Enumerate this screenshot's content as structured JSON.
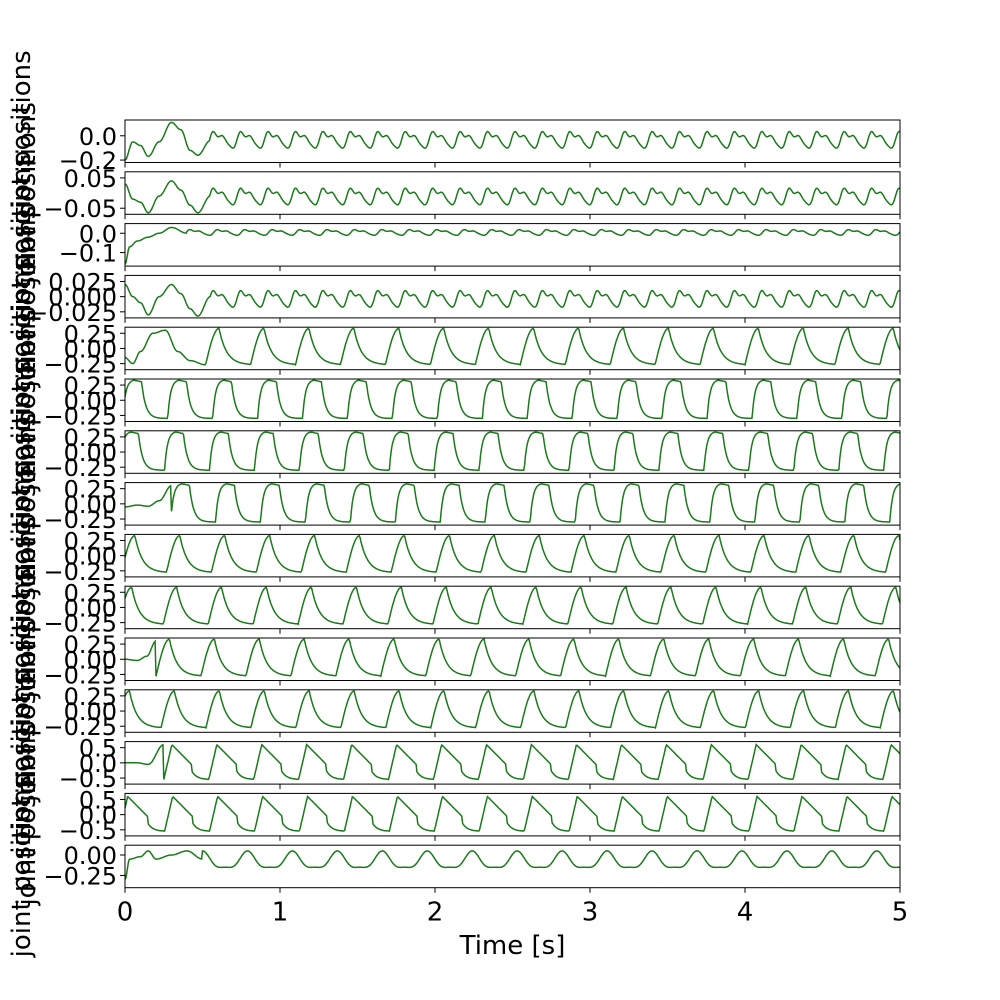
{
  "chart_data": {
    "type": "line",
    "layout": "15 stacked subplots sharing the x axis",
    "line_color": "#1a7a1a",
    "xlabel": "Time [s]",
    "xlim": [
      0,
      5
    ],
    "x_ticks": [
      0,
      1,
      2,
      3,
      4,
      5
    ],
    "x_tick_labels": [
      "0",
      "1",
      "2",
      "3",
      "4",
      "5"
    ],
    "ylabel": "joint positions",
    "legend": "none",
    "grid": false,
    "subplots": [
      {
        "ylim": [
          -0.22,
          0.13
        ],
        "y_ticks": [
          0.0,
          -0.2
        ],
        "y_tick_labels": [
          "0.0",
          "−0.2"
        ],
        "series": {
          "period": 0.177,
          "start": 0.55,
          "mean": -0.03,
          "amp": 0.055,
          "shape": "wiggle",
          "transient": [
            [
              0,
              -0.2
            ],
            [
              0.05,
              -0.05
            ],
            [
              0.1,
              -0.08
            ],
            [
              0.15,
              -0.17
            ],
            [
              0.22,
              -0.05
            ],
            [
              0.3,
              0.11
            ],
            [
              0.36,
              0.05
            ],
            [
              0.42,
              -0.12
            ],
            [
              0.47,
              -0.16
            ],
            [
              0.55,
              -0.04
            ]
          ]
        }
      },
      {
        "ylim": [
          -0.07,
          0.07
        ],
        "y_ticks": [
          0.05,
          -0.05
        ],
        "y_tick_labels": [
          "0.05",
          "−0.05"
        ],
        "series": {
          "period": 0.177,
          "start": 0.55,
          "mean": -0.01,
          "amp": 0.022,
          "shape": "wiggle",
          "transient": [
            [
              0,
              0.03
            ],
            [
              0.05,
              -0.02
            ],
            [
              0.1,
              -0.03
            ],
            [
              0.15,
              -0.065
            ],
            [
              0.22,
              -0.01
            ],
            [
              0.3,
              0.04
            ],
            [
              0.36,
              0.01
            ],
            [
              0.42,
              -0.04
            ],
            [
              0.47,
              -0.065
            ],
            [
              0.55,
              -0.01
            ]
          ]
        }
      },
      {
        "ylim": [
          -0.17,
          0.05
        ],
        "y_ticks": [
          0.0,
          -0.1
        ],
        "y_tick_labels": [
          "0.0",
          "−0.1"
        ],
        "series": {
          "period": 0.177,
          "start": 0.4,
          "mean": 0.005,
          "amp": 0.012,
          "shape": "wiggle",
          "transient": [
            [
              0,
              -0.16
            ],
            [
              0.03,
              -0.07
            ],
            [
              0.08,
              -0.04
            ],
            [
              0.15,
              -0.02
            ],
            [
              0.22,
              0.0
            ],
            [
              0.3,
              0.03
            ],
            [
              0.4,
              0.0
            ]
          ]
        }
      },
      {
        "ylim": [
          -0.035,
          0.035
        ],
        "y_ticks": [
          0.025,
          0.0,
          -0.025
        ],
        "y_tick_labels": [
          "0.025",
          "0.000",
          "−0.025"
        ],
        "series": {
          "period": 0.177,
          "start": 0.55,
          "mean": -0.003,
          "amp": 0.011,
          "shape": "wiggle",
          "transient": [
            [
              0,
              0.02
            ],
            [
              0.05,
              0.0
            ],
            [
              0.1,
              -0.01
            ],
            [
              0.15,
              -0.03
            ],
            [
              0.22,
              0.0
            ],
            [
              0.3,
              0.02
            ],
            [
              0.36,
              0.005
            ],
            [
              0.42,
              -0.02
            ],
            [
              0.47,
              -0.032
            ],
            [
              0.55,
              0.0
            ]
          ]
        }
      },
      {
        "ylim": [
          -0.35,
          0.35
        ],
        "y_ticks": [
          0.25,
          0.0,
          -0.25
        ],
        "y_tick_labels": [
          "0.25",
          "0.00",
          "−0.25"
        ],
        "series": {
          "period": 0.29,
          "start": 0.52,
          "phase": 0.0,
          "low": -0.27,
          "high": 0.33,
          "shape": "sawtooth",
          "transient": [
            [
              0,
              -0.15
            ],
            [
              0.05,
              -0.25
            ],
            [
              0.1,
              -0.05
            ],
            [
              0.18,
              0.25
            ],
            [
              0.26,
              0.3
            ],
            [
              0.34,
              -0.05
            ],
            [
              0.42,
              -0.2
            ],
            [
              0.52,
              -0.27
            ]
          ]
        }
      },
      {
        "ylim": [
          -0.35,
          0.35
        ],
        "y_ticks": [
          0.25,
          0.0,
          -0.25
        ],
        "y_tick_labels": [
          "0.25",
          "0.00",
          "−0.25"
        ],
        "series": {
          "period": 0.29,
          "start": 0.0,
          "phase": 0.05,
          "low": -0.3,
          "high": 0.33,
          "shape": "pulse",
          "transient": []
        }
      },
      {
        "ylim": [
          -0.35,
          0.35
        ],
        "y_ticks": [
          0.25,
          0.0,
          -0.25
        ],
        "y_tick_labels": [
          "0.25",
          "0.00",
          "−0.25"
        ],
        "series": {
          "period": 0.29,
          "start": 0.0,
          "phase": 0.12,
          "low": -0.3,
          "high": 0.33,
          "shape": "pulse",
          "transient": []
        }
      },
      {
        "ylim": [
          -0.35,
          0.35
        ],
        "y_ticks": [
          0.25,
          0.0,
          -0.25
        ],
        "y_tick_labels": [
          "0.25",
          "0.00",
          "−0.25"
        ],
        "series": {
          "period": 0.29,
          "start": 0.3,
          "phase": 0.02,
          "low": -0.3,
          "high": 0.33,
          "shape": "pulse",
          "transient": [
            [
              0,
              -0.05
            ],
            [
              0.08,
              -0.02
            ],
            [
              0.15,
              -0.04
            ],
            [
              0.22,
              0.05
            ],
            [
              0.3,
              0.3
            ]
          ]
        }
      },
      {
        "ylim": [
          -0.35,
          0.35
        ],
        "y_ticks": [
          0.25,
          0.0,
          -0.25
        ],
        "y_tick_labels": [
          "0.25",
          "0.00",
          "−0.25"
        ],
        "series": {
          "period": 0.29,
          "start": 0.0,
          "phase": 0.08,
          "low": -0.28,
          "high": 0.33,
          "shape": "sawtooth",
          "transient": []
        }
      },
      {
        "ylim": [
          -0.35,
          0.35
        ],
        "y_ticks": [
          0.25,
          0.0,
          -0.25
        ],
        "y_tick_labels": [
          "0.25",
          "0.00",
          "−0.25"
        ],
        "series": {
          "period": 0.29,
          "start": 0.0,
          "phase": 0.15,
          "low": -0.28,
          "high": 0.33,
          "shape": "sawtooth",
          "transient": []
        }
      },
      {
        "ylim": [
          -0.35,
          0.35
        ],
        "y_ticks": [
          0.25,
          0.0,
          -0.25
        ],
        "y_tick_labels": [
          "0.25",
          "0.00",
          "−0.25"
        ],
        "series": {
          "period": 0.29,
          "start": 0.2,
          "phase": 0.0,
          "low": -0.28,
          "high": 0.33,
          "shape": "sawtooth",
          "transient": [
            [
              0,
              0.0
            ],
            [
              0.08,
              -0.02
            ],
            [
              0.14,
              0.05
            ],
            [
              0.2,
              0.3
            ]
          ]
        }
      },
      {
        "ylim": [
          -0.35,
          0.35
        ],
        "y_ticks": [
          0.25,
          0.0,
          -0.25
        ],
        "y_tick_labels": [
          "0.25",
          "0.00",
          "−0.25"
        ],
        "series": {
          "period": 0.29,
          "start": 0.0,
          "phase": 0.2,
          "low": -0.28,
          "high": 0.33,
          "shape": "sawtooth",
          "transient": []
        }
      },
      {
        "ylim": [
          -0.7,
          0.7
        ],
        "y_ticks": [
          0.5,
          0.0,
          -0.5
        ],
        "y_tick_labels": [
          "0.5",
          "0.0",
          "−0.5"
        ],
        "series": {
          "period": 0.29,
          "start": 0.25,
          "phase": 0.0,
          "low": -0.55,
          "high": 0.6,
          "shape": "ramp",
          "transient": [
            [
              0,
              0.0
            ],
            [
              0.08,
              0.0
            ],
            [
              0.15,
              -0.05
            ],
            [
              0.25,
              0.6
            ]
          ]
        }
      },
      {
        "ylim": [
          -0.7,
          0.7
        ],
        "y_ticks": [
          0.5,
          0.0,
          -0.5
        ],
        "y_tick_labels": [
          "0.5",
          "0.0",
          "−0.5"
        ],
        "series": {
          "period": 0.29,
          "start": 0.0,
          "phase": 0.12,
          "low": -0.55,
          "high": 0.6,
          "shape": "ramp",
          "transient": []
        }
      },
      {
        "ylim": [
          -0.4,
          0.12
        ],
        "y_ticks": [
          0.0,
          -0.25
        ],
        "y_tick_labels": [
          "0.00",
          "−0.25"
        ],
        "series": {
          "period": 0.29,
          "start": 0.5,
          "mean": -0.08,
          "amp": 0.1,
          "shape": "wave",
          "transient": [
            [
              0,
              -0.3
            ],
            [
              0.03,
              -0.05
            ],
            [
              0.1,
              -0.02
            ],
            [
              0.15,
              0.05
            ],
            [
              0.2,
              -0.05
            ],
            [
              0.3,
              0.0
            ],
            [
              0.4,
              0.05
            ],
            [
              0.5,
              -0.05
            ]
          ]
        }
      }
    ]
  }
}
